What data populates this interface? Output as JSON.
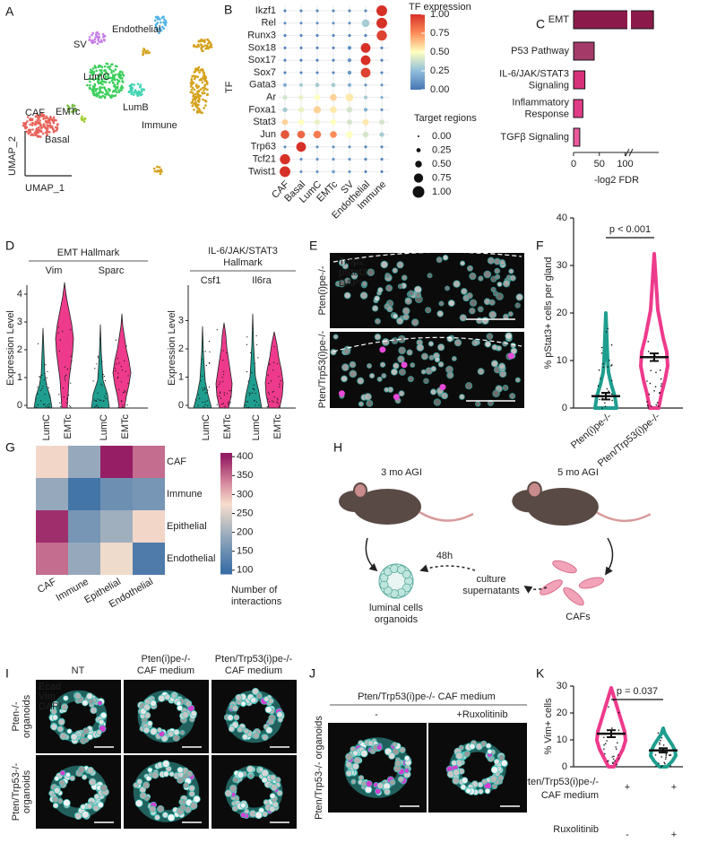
{
  "A": {
    "letter": "A",
    "clusters": [
      "SV",
      "Endothelial",
      "CAF",
      "LumC",
      "LumB",
      "EMTc",
      "Basal",
      "Immune"
    ],
    "xlabel": "UMAP_1",
    "ylabel": "UMAP_2"
  },
  "B": {
    "letter": "B",
    "type": "dotplot",
    "rows": [
      "Ikzf1",
      "Rel",
      "Runx3",
      "Sox18",
      "Sox17",
      "Sox7",
      "Gata3",
      "Ar",
      "Foxa1",
      "Stat3",
      "Jun",
      "Trp63",
      "Tcf21",
      "Twist1"
    ],
    "columns": [
      "CAF",
      "Basal",
      "LumC",
      "EMTc",
      "SV",
      "Endothelial",
      "Immune"
    ],
    "ylabel": "TF",
    "expression": [
      [
        0.05,
        0.05,
        0.05,
        0.05,
        0.05,
        0.05,
        1
      ],
      [
        0.1,
        0.1,
        0.1,
        0.1,
        0.1,
        0.3,
        1
      ],
      [
        0.05,
        0.05,
        0.05,
        0.05,
        0.05,
        0.05,
        0.95
      ],
      [
        0.05,
        0.05,
        0.05,
        0.05,
        0.1,
        1,
        0.05
      ],
      [
        0.05,
        0.05,
        0.05,
        0.05,
        0.1,
        1,
        0.05
      ],
      [
        0.05,
        0.05,
        0.05,
        0.05,
        0.1,
        0.95,
        0.05
      ],
      [
        0.2,
        0.3,
        0.3,
        0.3,
        0.2,
        0.1,
        0.1
      ],
      [
        0.4,
        0.45,
        0.5,
        0.6,
        0.55,
        0.3,
        0.2
      ],
      [
        0.3,
        0.45,
        0.6,
        0.55,
        0.4,
        0.2,
        0.1
      ],
      [
        0.6,
        0.5,
        0.45,
        0.5,
        0.4,
        0.55,
        0.4
      ],
      [
        0.9,
        0.85,
        0.8,
        0.75,
        0.5,
        0.4,
        0.3
      ],
      [
        0.1,
        1,
        0.1,
        0.1,
        0.1,
        0.05,
        0.05
      ],
      [
        1,
        0.1,
        0.1,
        0.1,
        0.1,
        0.05,
        0.05
      ],
      [
        1,
        0.1,
        0.1,
        0.15,
        0.1,
        0.05,
        0.05
      ]
    ],
    "size": [
      [
        0.1,
        0.1,
        0.1,
        0.1,
        0.1,
        0.1,
        0.9
      ],
      [
        0.1,
        0.1,
        0.1,
        0.1,
        0.1,
        0.6,
        0.9
      ],
      [
        0.1,
        0.1,
        0.1,
        0.1,
        0.1,
        0.1,
        0.85
      ],
      [
        0.1,
        0.1,
        0.1,
        0.1,
        0.2,
        0.8,
        0.1
      ],
      [
        0.1,
        0.1,
        0.1,
        0.1,
        0.2,
        0.8,
        0.1
      ],
      [
        0.1,
        0.1,
        0.1,
        0.1,
        0.2,
        0.8,
        0.1
      ],
      [
        0.2,
        0.2,
        0.25,
        0.25,
        0.2,
        0.1,
        0.1
      ],
      [
        0.3,
        0.3,
        0.4,
        0.5,
        0.6,
        0.2,
        0.1
      ],
      [
        0.3,
        0.4,
        0.55,
        0.5,
        0.4,
        0.2,
        0.1
      ],
      [
        0.4,
        0.4,
        0.35,
        0.4,
        0.35,
        0.45,
        0.35
      ],
      [
        0.7,
        0.6,
        0.6,
        0.5,
        0.5,
        0.4,
        0.3
      ],
      [
        0.1,
        0.8,
        0.1,
        0.1,
        0.1,
        0.1,
        0.1
      ],
      [
        0.85,
        0.1,
        0.1,
        0.1,
        0.1,
        0.1,
        0.1
      ],
      [
        0.9,
        0.1,
        0.1,
        0.15,
        0.1,
        0.1,
        0.1
      ]
    ],
    "color_title": "TF expression",
    "color_ticks": [
      {
        "value": 0,
        "label": "0.00"
      },
      {
        "value": 0.25,
        "label": "0.25"
      },
      {
        "value": 0.5,
        "label": "0.50"
      },
      {
        "value": 0.75,
        "label": "0.75"
      },
      {
        "value": 1,
        "label": "1.00"
      }
    ],
    "size_title": "Target regions",
    "size_ticks": [
      {
        "value": 0,
        "label": "0.00"
      },
      {
        "value": 0.25,
        "label": "0.25"
      },
      {
        "value": 0.5,
        "label": "0.50"
      },
      {
        "value": 0.75,
        "label": "0.75"
      },
      {
        "value": 1,
        "label": "1.00"
      }
    ]
  },
  "C": {
    "letter": "C",
    "type": "bar",
    "orientation": "horizontal",
    "categories": [
      [
        "EMT"
      ],
      [
        "P53 Pathway"
      ],
      [
        "IL-6/JAK/STAT3",
        "Signaling"
      ],
      [
        "Inflammatory",
        "Response"
      ],
      [
        "TGFβ Signaling"
      ]
    ],
    "values": [
      155,
      40,
      22,
      18,
      12
    ],
    "colors": [
      "#8b1a4a",
      "#a33a68",
      "#d6307a",
      "#e23c88",
      "#ea5a9c"
    ],
    "xlabel": "-log2 FDR",
    "xlim": [
      0,
      160
    ],
    "xticks": [
      0,
      50,
      100
    ]
  },
  "D": {
    "letter": "D",
    "ylabel": "Expression Level",
    "groups": [
      "LumC",
      "EMTc"
    ],
    "left": {
      "title": [
        "EMT Hallmark"
      ],
      "genes": [
        "Vim",
        "Sparc"
      ],
      "yticks": [
        0,
        1,
        2,
        3,
        4
      ]
    },
    "right": {
      "title": [
        "IL-6/JAK/STAT3",
        "Hallmark"
      ],
      "genes": [
        "Csf1",
        "Il6ra"
      ],
      "yticks": [
        0,
        1,
        2,
        3
      ]
    }
  },
  "E": {
    "letter": "E",
    "channels": [
      "Trop2",
      "pStat3",
      "DAPI"
    ],
    "rows": [
      "Pten(i)pe-/-",
      "Pten/Trp53(i)pe-/-"
    ]
  },
  "F": {
    "letter": "F",
    "type": "violin",
    "categories": [
      "Pten(i)pe-/-",
      "Pten/Trp53(i)pe-/-"
    ],
    "means": [
      2.5,
      10.7
    ],
    "errors": [
      0.7,
      0.8
    ],
    "colors": [
      "#1f9e8f",
      "#ee3a8c"
    ],
    "ylabel": "% pStat3+ cells per gland",
    "ylim": [
      0,
      40
    ],
    "yticks": [
      0,
      10,
      20,
      30,
      40
    ],
    "annotation": "p < 0.001"
  },
  "G": {
    "letter": "G",
    "type": "heatmap",
    "rows": [
      "CAF",
      "Immune",
      "Epithelial",
      "Endothelial"
    ],
    "columns": [
      "CAF",
      "Immune",
      "Epithelial",
      "Endothelial"
    ],
    "values": [
      [
        280,
        190,
        410,
        350
      ],
      [
        190,
        110,
        150,
        160
      ],
      [
        390,
        160,
        200,
        280
      ],
      [
        350,
        190,
        270,
        120
      ]
    ],
    "clim": [
      90,
      410
    ],
    "cticks": [
      100,
      150,
      200,
      250,
      300,
      350,
      400
    ],
    "colorbar_title": [
      "Number of",
      "interactions"
    ]
  },
  "H": {
    "letter": "H",
    "left_label": "3 mo AGI",
    "right_label": "5 mo AGI",
    "time": "48h",
    "supernatant": [
      "culture",
      "supernatants"
    ],
    "organoids": [
      "luminal cells",
      "organoids"
    ],
    "cafs": "CAFs"
  },
  "I": {
    "letter": "I",
    "columns": [
      [
        "NT"
      ],
      [
        "Pten(i)pe-/-",
        "CAF medium"
      ],
      [
        "Pten/Trp53(i)pe-/-",
        "CAF medium"
      ]
    ],
    "rows": [
      [
        "Pten-/-",
        "organoids"
      ],
      [
        "Pten/Trp53-/-",
        "organoids"
      ]
    ],
    "channels": [
      "Ecad",
      "Vim",
      "DAPI"
    ]
  },
  "J": {
    "letter": "J",
    "title": "Pten/Trp53(i)pe-/- CAF medium",
    "columns": [
      "-",
      "+Ruxolitinib"
    ],
    "row": "Pten/Trp53-/- organoids"
  },
  "K": {
    "letter": "K",
    "type": "violin",
    "means": [
      12.3,
      6.1
    ],
    "errors": [
      1.3,
      0.8
    ],
    "colors": [
      "#ee3a8c",
      "#1f9e8f"
    ],
    "ylabel": "% Vim+ cells",
    "ylim": [
      0,
      30
    ],
    "yticks": [
      0,
      10,
      20,
      30
    ],
    "annotation": "p = 0.037",
    "conditions": [
      {
        "label": [
          "Pten/Trp53(i)pe-/-",
          "CAF medium"
        ],
        "marks": [
          "+",
          "+"
        ]
      },
      {
        "label": [
          "Ruxolitinib"
        ],
        "marks": [
          "-",
          "+"
        ]
      }
    ]
  }
}
